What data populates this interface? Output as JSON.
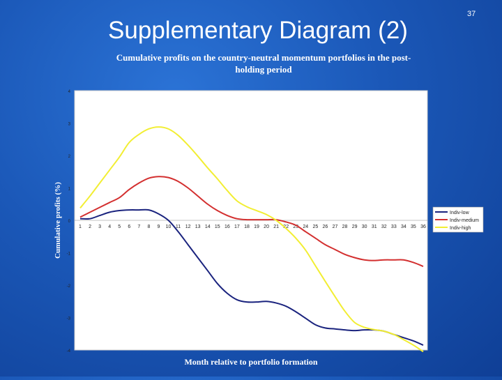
{
  "slide": {
    "title": "Supplementary Diagram (2)",
    "number": "37"
  },
  "colors": {
    "background": "#1b58b8",
    "plot_area": "#ffffff",
    "low": "#1a237e",
    "medium": "#d32f2f",
    "high": "#f2ee33"
  },
  "chart_data": {
    "type": "line",
    "title_line1": "Cumulative profits on the country-neutral momentum portfolios in the post-",
    "title_line2": "holding period",
    "xlabel": "Month relative to portfolio formation",
    "ylabel": "Cumulative profits (%)",
    "x": [
      1,
      2,
      3,
      4,
      5,
      6,
      7,
      8,
      9,
      10,
      11,
      12,
      13,
      14,
      15,
      16,
      17,
      18,
      19,
      20,
      21,
      22,
      23,
      24,
      25,
      26,
      27,
      28,
      29,
      30,
      31,
      32,
      33,
      34,
      35,
      36
    ],
    "x_tick_labels": [
      "1",
      "2",
      "3",
      "4",
      "5",
      "6",
      "7",
      "8",
      "9",
      "10",
      "11",
      "12",
      "13",
      "14",
      "15",
      "16",
      "17",
      "18",
      "19",
      "20",
      "21",
      "22",
      "23",
      "24",
      "25",
      "26",
      "27",
      "28",
      "29",
      "30",
      "31",
      "32",
      "33",
      "34",
      "35",
      "36"
    ],
    "y_ticks": [
      {
        "value": 4,
        "label": "4"
      },
      {
        "value": 3,
        "label": "3"
      },
      {
        "value": 2,
        "label": "2"
      },
      {
        "value": 1,
        "label": "1"
      },
      {
        "value": 0,
        "label": "0"
      },
      {
        "value": -1,
        "label": "-1"
      },
      {
        "value": -2,
        "label": "-2"
      },
      {
        "value": -3,
        "label": "-3"
      },
      {
        "value": -4,
        "label": "-4"
      }
    ],
    "ylim": [
      -4,
      4
    ],
    "grid": false,
    "legend_position": "right",
    "series": [
      {
        "name": "Indiv-low",
        "color_key": "low",
        "values": [
          0.05,
          0.05,
          0.15,
          0.25,
          0.3,
          0.32,
          0.32,
          0.32,
          0.2,
          0.0,
          -0.35,
          -0.75,
          -1.15,
          -1.55,
          -1.95,
          -2.25,
          -2.45,
          -2.52,
          -2.52,
          -2.5,
          -2.55,
          -2.65,
          -2.82,
          -3.02,
          -3.22,
          -3.32,
          -3.35,
          -3.38,
          -3.4,
          -3.38,
          -3.38,
          -3.42,
          -3.52,
          -3.62,
          -3.72,
          -3.85
        ]
      },
      {
        "name": "Indiv-medium",
        "color_key": "medium",
        "values": [
          0.1,
          0.25,
          0.4,
          0.55,
          0.7,
          0.95,
          1.15,
          1.3,
          1.35,
          1.32,
          1.2,
          1.0,
          0.75,
          0.5,
          0.3,
          0.15,
          0.05,
          0.02,
          0.02,
          0.02,
          0.02,
          -0.05,
          -0.15,
          -0.35,
          -0.55,
          -0.75,
          -0.9,
          -1.05,
          -1.15,
          -1.22,
          -1.24,
          -1.22,
          -1.22,
          -1.22,
          -1.3,
          -1.42
        ]
      },
      {
        "name": "Indiv-high",
        "color_key": "high",
        "values": [
          0.38,
          0.75,
          1.15,
          1.55,
          1.95,
          2.4,
          2.65,
          2.82,
          2.88,
          2.82,
          2.62,
          2.32,
          1.98,
          1.62,
          1.28,
          0.92,
          0.6,
          0.42,
          0.3,
          0.18,
          0.0,
          -0.25,
          -0.55,
          -0.92,
          -1.4,
          -1.88,
          -2.35,
          -2.8,
          -3.15,
          -3.3,
          -3.37,
          -3.42,
          -3.52,
          -3.68,
          -3.85,
          -4.05
        ]
      }
    ]
  }
}
